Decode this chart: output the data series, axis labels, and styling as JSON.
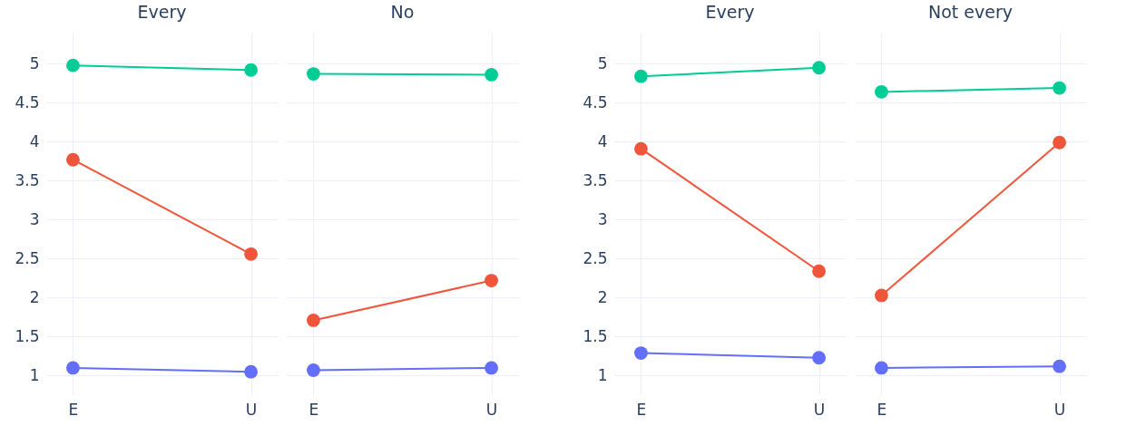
{
  "chart_data": [
    {
      "type": "line",
      "title": "Every",
      "categories": [
        "E",
        "U"
      ],
      "series": [
        {
          "color": "#00cc96",
          "values": [
            4.98,
            4.92
          ]
        },
        {
          "color": "#ef553b",
          "values": [
            3.77,
            2.56
          ]
        },
        {
          "color": "#636efa",
          "values": [
            1.1,
            1.05
          ]
        }
      ],
      "ylim": [
        0.75,
        5.4
      ],
      "yticks": [
        1,
        1.5,
        2,
        2.5,
        3,
        3.5,
        4,
        4.5,
        5
      ],
      "grid": true,
      "marker": "circle"
    },
    {
      "type": "line",
      "title": "No",
      "categories": [
        "E",
        "U"
      ],
      "series": [
        {
          "color": "#00cc96",
          "values": [
            4.87,
            4.86
          ]
        },
        {
          "color": "#ef553b",
          "values": [
            1.71,
            2.22
          ]
        },
        {
          "color": "#636efa",
          "values": [
            1.07,
            1.1
          ]
        }
      ],
      "ylim": [
        0.75,
        5.4
      ],
      "yticks": [
        1,
        1.5,
        2,
        2.5,
        3,
        3.5,
        4,
        4.5,
        5
      ],
      "grid": true,
      "marker": "circle",
      "tick_labels": "x"
    },
    {
      "type": "line",
      "title": "Every",
      "categories": [
        "E",
        "U"
      ],
      "series": [
        {
          "color": "#00cc96",
          "values": [
            4.84,
            4.95
          ]
        },
        {
          "color": "#ef553b",
          "values": [
            3.91,
            2.34
          ]
        },
        {
          "color": "#636efa",
          "values": [
            1.29,
            1.23
          ]
        }
      ],
      "ylim": [
        0.75,
        5.4
      ],
      "yticks": [
        1,
        1.5,
        2,
        2.5,
        3,
        3.5,
        4,
        4.5,
        5
      ],
      "grid": true,
      "marker": "circle"
    },
    {
      "type": "line",
      "title": "Not every",
      "categories": [
        "E",
        "U"
      ],
      "series": [
        {
          "color": "#00cc96",
          "values": [
            4.64,
            4.69
          ]
        },
        {
          "color": "#ef553b",
          "values": [
            2.03,
            3.99
          ]
        },
        {
          "color": "#636efa",
          "values": [
            1.1,
            1.12
          ]
        }
      ],
      "ylim": [
        0.75,
        5.4
      ],
      "yticks": [
        1,
        1.5,
        2,
        2.5,
        3,
        3.5,
        4,
        4.5,
        5
      ],
      "grid": true,
      "marker": "circle",
      "tick_labels": "x"
    }
  ]
}
